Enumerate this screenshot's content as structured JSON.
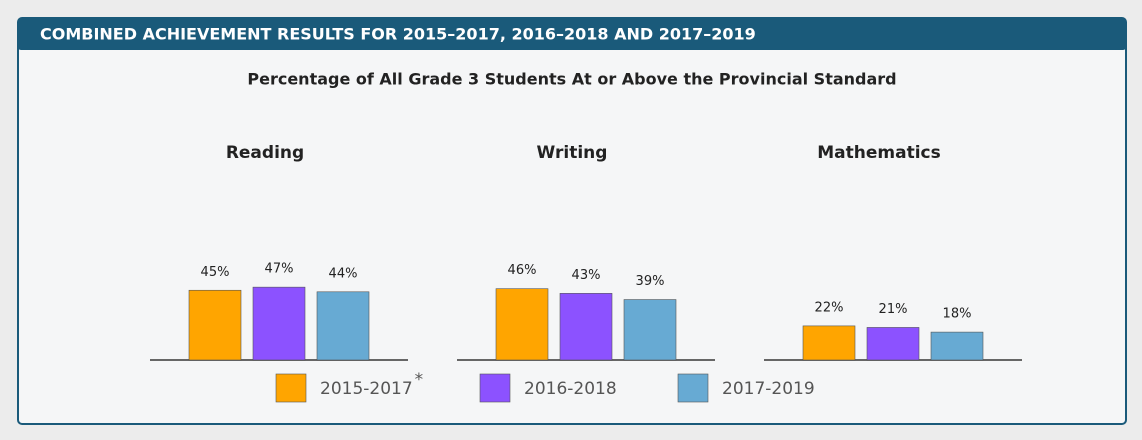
{
  "chart_data": {
    "type": "bar",
    "title": "COMBINED ACHIEVEMENT RESULTS FOR 2015–2017, 2016–2018 AND 2017–2019",
    "subtitle": "Percentage of All Grade 3 Students At or Above the Provincial Standard",
    "categories": [
      "Reading",
      "Writing",
      "Mathematics"
    ],
    "series": [
      {
        "name": "2015-2017",
        "name_note": "*",
        "color": "#ffa500",
        "values": [
          45,
          46,
          22
        ],
        "value_labels": [
          "45%",
          "46%",
          "22%"
        ]
      },
      {
        "name": "2016-2018",
        "color": "#8c52ff",
        "values": [
          47,
          43,
          21
        ],
        "value_labels": [
          "47%",
          "43%",
          "21%"
        ]
      },
      {
        "name": "2017-2019",
        "color": "#67aad3",
        "values": [
          44,
          39,
          18
        ],
        "value_labels": [
          "44%",
          "39%",
          "18%"
        ]
      }
    ]
  }
}
